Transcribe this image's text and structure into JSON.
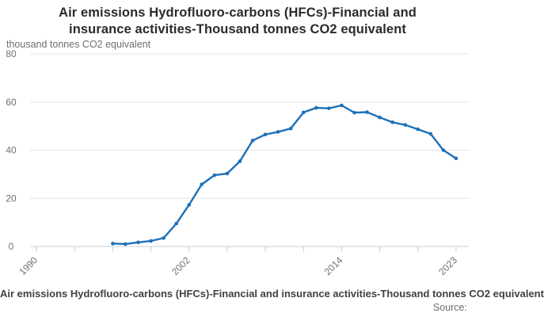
{
  "title": {
    "line1": "Air emissions Hydrofluoro-carbons (HFCs)-Financial and",
    "line2": "insurance activities-Thousand tonnes CO2 equivalent"
  },
  "y_axis": {
    "unit_label": "thousand tonnes CO2 equivalent",
    "ticks": [
      0,
      20,
      40,
      60,
      80
    ]
  },
  "x_axis": {
    "tick_years": [
      1990,
      1993,
      1996,
      1999,
      2002,
      2005,
      2008,
      2011,
      2014,
      2017,
      2020,
      2023
    ],
    "labeled_years": [
      1990,
      2002,
      2014,
      2023
    ]
  },
  "footer": {
    "caption": "Air emissions Hydrofluoro-carbons (HFCs)-Financial and insurance activities-Thousand tonnes CO2 equivalent",
    "source_label": "Source:"
  },
  "colors": {
    "line": "#1d70b8",
    "gridline": "#e3e3e3",
    "axis": "#c3ccd6",
    "tick": "#c3ccd6",
    "tick_label": "#707071",
    "title_text": "#2b2b2b",
    "caption_text": "#414042"
  },
  "chart_data": {
    "type": "line",
    "title": "Air emissions Hydrofluoro-carbons (HFCs)-Financial and insurance activities-Thousand tonnes CO2 equivalent",
    "xlabel": "",
    "ylabel": "thousand tonnes CO2 equivalent",
    "x": [
      1996,
      1997,
      1998,
      1999,
      2000,
      2001,
      2002,
      2003,
      2004,
      2005,
      2006,
      2007,
      2008,
      2009,
      2010,
      2011,
      2012,
      2013,
      2014,
      2015,
      2016,
      2017,
      2018,
      2019,
      2020,
      2021,
      2022,
      2023
    ],
    "values": [
      1.2,
      1.0,
      1.7,
      2.3,
      3.5,
      9.5,
      17.3,
      25.8,
      29.6,
      30.3,
      35.4,
      44.0,
      46.5,
      47.6,
      49.0,
      55.7,
      57.6,
      57.4,
      58.6,
      55.6,
      55.8,
      53.6,
      51.6,
      50.5,
      48.7,
      46.8,
      40.0,
      36.6
    ],
    "ylim": [
      0,
      80
    ],
    "xlim": [
      1989.5,
      2024
    ],
    "grid": "horizontal",
    "legend": "none",
    "marker": "point"
  }
}
